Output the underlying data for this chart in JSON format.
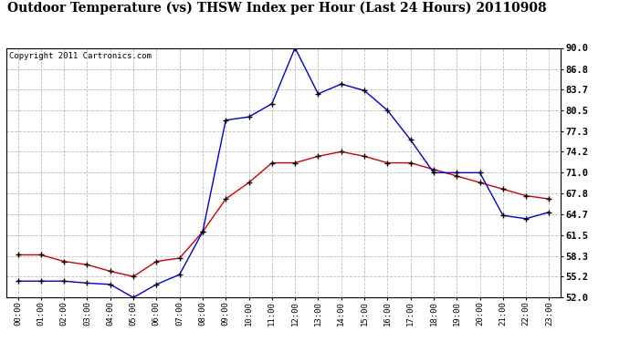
{
  "title": "Outdoor Temperature (vs) THSW Index per Hour (Last 24 Hours) 20110908",
  "copyright": "Copyright 2011 Cartronics.com",
  "x_labels": [
    "00:00",
    "01:00",
    "02:00",
    "03:00",
    "04:00",
    "05:00",
    "06:00",
    "07:00",
    "08:00",
    "09:00",
    "10:00",
    "11:00",
    "12:00",
    "13:00",
    "14:00",
    "15:00",
    "16:00",
    "17:00",
    "18:00",
    "19:00",
    "20:00",
    "21:00",
    "22:00",
    "23:00"
  ],
  "temp_red": [
    58.5,
    58.5,
    57.5,
    57.0,
    56.0,
    55.2,
    57.5,
    58.0,
    62.0,
    67.0,
    69.5,
    72.5,
    72.5,
    73.5,
    74.2,
    73.5,
    72.5,
    72.5,
    71.5,
    70.5,
    69.5,
    68.5,
    67.5,
    67.0
  ],
  "thsw_blue": [
    54.5,
    54.5,
    54.5,
    54.2,
    54.0,
    52.0,
    54.0,
    55.5,
    62.0,
    79.0,
    79.5,
    81.5,
    90.0,
    83.0,
    84.5,
    83.5,
    80.5,
    76.0,
    71.0,
    71.0,
    71.0,
    64.5,
    64.0,
    65.0
  ],
  "ylim": [
    52.0,
    90.0
  ],
  "yticks": [
    52.0,
    55.2,
    58.3,
    61.5,
    64.7,
    67.8,
    71.0,
    74.2,
    77.3,
    80.5,
    83.7,
    86.8,
    90.0
  ],
  "bg_color": "#ffffff",
  "grid_color": "#bbbbbb",
  "red_color": "#cc0000",
  "blue_color": "#0000cc",
  "title_fontsize": 10,
  "copyright_fontsize": 6.5,
  "tick_fontsize": 7.5,
  "xtick_fontsize": 6.5
}
